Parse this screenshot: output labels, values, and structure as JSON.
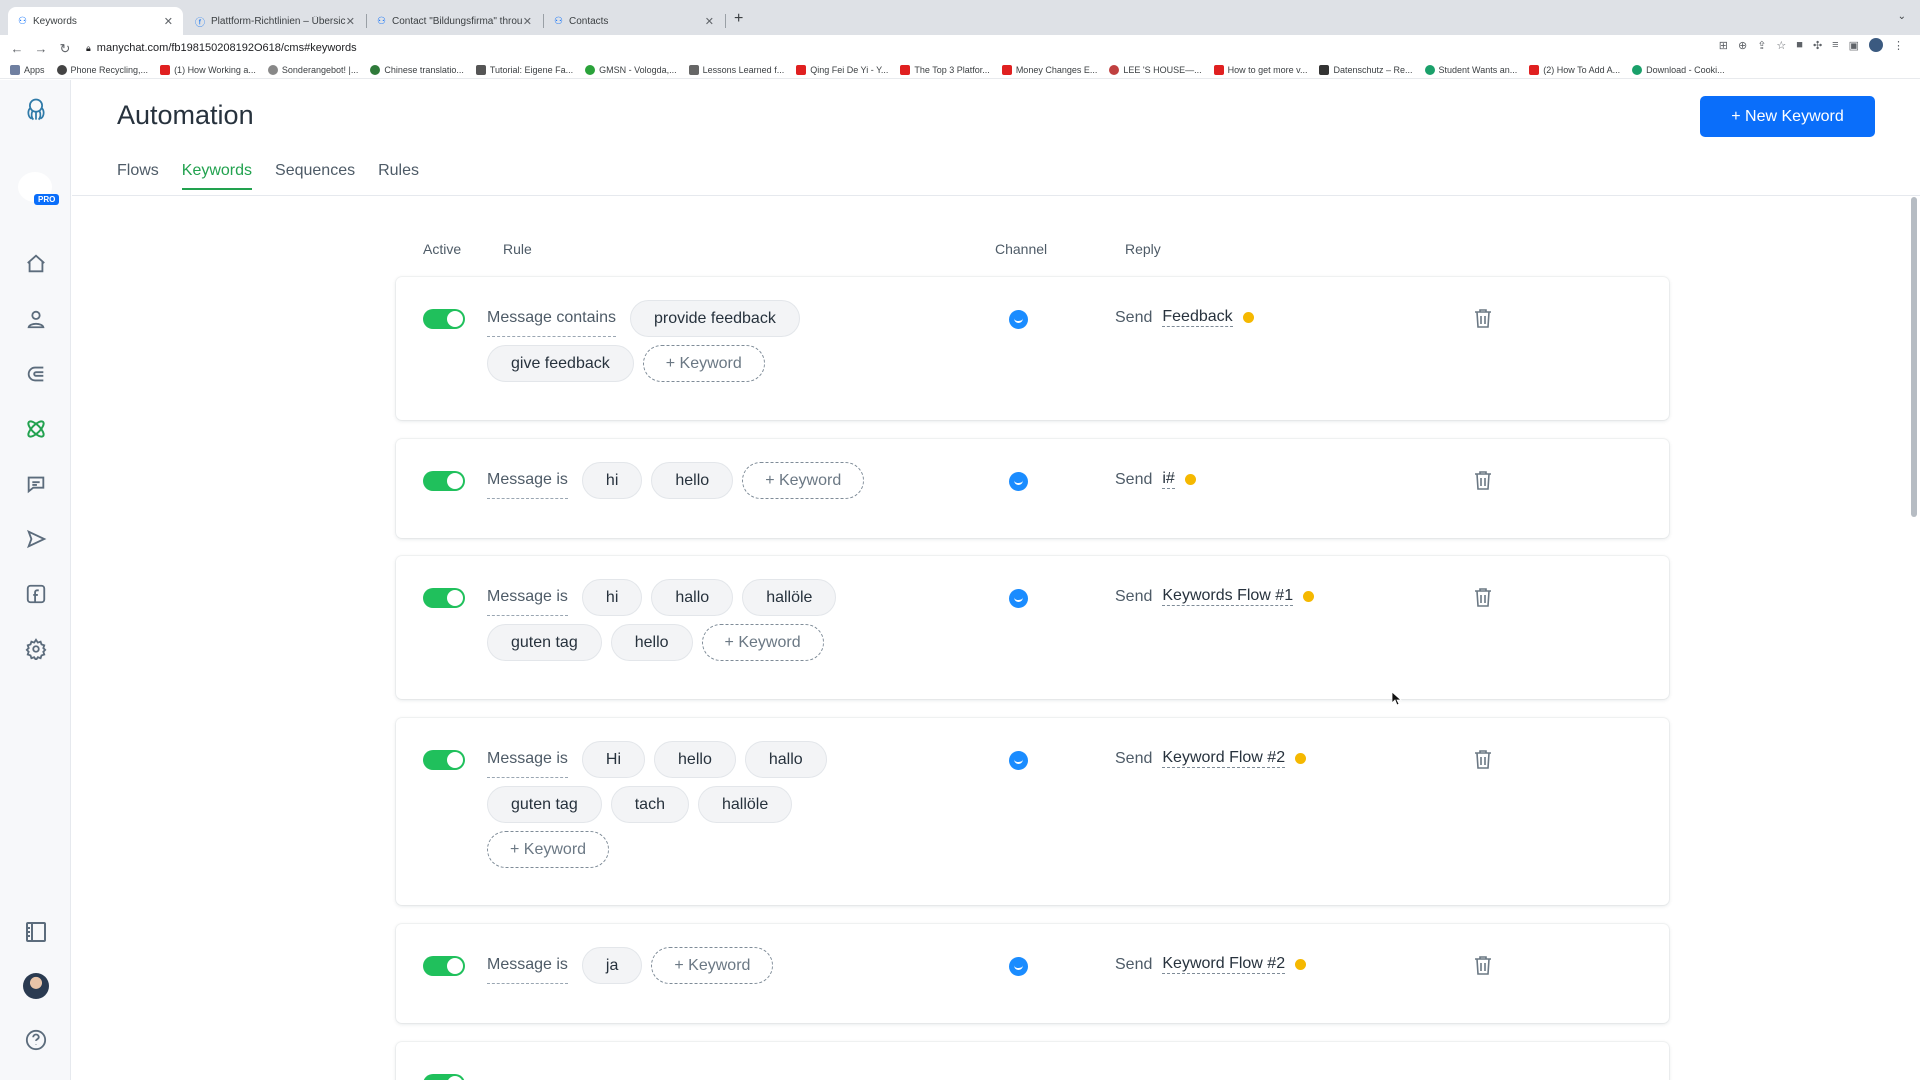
{
  "browser": {
    "tabs": [
      {
        "title": "Keywords",
        "active": true
      },
      {
        "title": "Plattform-Richtlinien – Übersic",
        "active": false
      },
      {
        "title": "Contact \"Bildungsfirma\" throu",
        "active": false
      },
      {
        "title": "Contacts",
        "active": false
      }
    ],
    "new_tab": "+",
    "url": "manychat.com/fb198150208192O618/cms#keywords",
    "bookmarks": [
      "Apps",
      "Phone Recycling,...",
      "(1) How Working a...",
      "Sonderangebot! |...",
      "Chinese translatio...",
      "Tutorial: Eigene Fa...",
      "GMSN - Vologda,...",
      "Lessons Learned f...",
      "Qing Fei De Yi - Y...",
      "The Top 3 Platfor...",
      "Money Changes E...",
      "LEE 'S HOUSE—...",
      "How to get more v...",
      "Datenschutz – Re...",
      "Student Wants an...",
      "(2) How To Add A...",
      "Download - Cooki..."
    ]
  },
  "sidebar": {
    "pro_badge": "PRO",
    "icons": [
      "home-icon",
      "contacts-icon",
      "growth-tools-icon",
      "automation-icon",
      "live-chat-icon",
      "broadcasting-icon",
      "facebook-icon",
      "settings-icon",
      "templates-icon",
      "profile-avatar",
      "help-icon"
    ]
  },
  "header": {
    "title": "Automation",
    "new_keyword_label": "+ New Keyword",
    "tabs": [
      {
        "label": "Flows",
        "active": false
      },
      {
        "label": "Keywords",
        "active": true
      },
      {
        "label": "Sequences",
        "active": false
      },
      {
        "label": "Rules",
        "active": false
      }
    ]
  },
  "columns": {
    "active": "Active",
    "rule": "Rule",
    "channel": "Channel",
    "reply": "Reply"
  },
  "add_keyword_label": "+ Keyword",
  "send_label": "Send",
  "rules": [
    {
      "condition": "Message contains",
      "keywords": [
        "provide feedback",
        "give feedback"
      ],
      "reply_flow": "Feedback"
    },
    {
      "condition": "Message is",
      "keywords": [
        "hi",
        "hello"
      ],
      "reply_flow": "i#"
    },
    {
      "condition": "Message is",
      "keywords": [
        "hi",
        "hallo",
        "hallöle",
        "guten tag",
        "hello"
      ],
      "reply_flow": "Keywords Flow #1"
    },
    {
      "condition": "Message is",
      "keywords": [
        "Hi",
        "hello",
        "hallo",
        "guten tag",
        "tach",
        "hallöle"
      ],
      "reply_flow": "Keyword Flow #2"
    },
    {
      "condition": "Message is",
      "keywords": [
        "ja"
      ],
      "reply_flow": "Keyword Flow #2"
    }
  ],
  "colors": {
    "accent_green": "#22a24f",
    "toggle_on": "#20c05c",
    "primary_button": "#0a6efa",
    "status_dot": "#f5b800",
    "messenger_blue": "#1a8cff"
  }
}
